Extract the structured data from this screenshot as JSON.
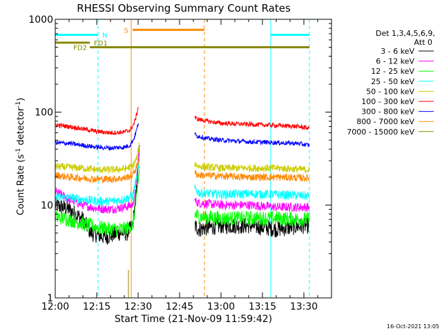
{
  "chart_data": {
    "type": "line",
    "title": "RHESSI Observing Summary Count Rates",
    "xlabel": "Start Time (21-Nov-09 11:59:42)",
    "ylabel_parts": [
      "Count Rate (s",
      "-1",
      " detector",
      "-1",
      ")"
    ],
    "yscale": "log",
    "xlim": [
      0,
      100
    ],
    "ylim": [
      1,
      1000
    ],
    "x_unit": "minutes after 12:00",
    "x_ticks": [
      {
        "x": 0,
        "label": "12:00"
      },
      {
        "x": 15,
        "label": "12:15"
      },
      {
        "x": 30,
        "label": "12:30"
      },
      {
        "x": 45,
        "label": "12:45"
      },
      {
        "x": 60,
        "label": "13:00"
      },
      {
        "x": 75,
        "label": "13:15"
      },
      {
        "x": 90,
        "label": "13:30"
      }
    ],
    "y_ticks": [
      {
        "y": 1,
        "label": "1"
      },
      {
        "y": 10,
        "label": "10"
      },
      {
        "y": 100,
        "label": "100"
      },
      {
        "y": 1000,
        "label": "1000"
      }
    ],
    "legend": {
      "placement": "right",
      "header": [
        "Det 1,3,4,5,6,9,",
        "Att 0"
      ]
    },
    "series": [
      {
        "name": "3 - 6 keV",
        "color": "#000000",
        "before": [
          [
            0,
            10
          ],
          [
            5,
            9
          ],
          [
            10,
            7
          ],
          [
            13,
            5
          ],
          [
            18,
            4.5
          ],
          [
            23,
            5
          ],
          [
            26,
            5
          ],
          [
            28,
            6
          ],
          [
            29.5,
            15
          ],
          [
            30.5,
            40
          ]
        ],
        "after": [
          [
            50.5,
            6
          ],
          [
            52,
            5.5
          ],
          [
            60,
            6
          ],
          [
            70,
            6
          ],
          [
            80,
            5.5
          ],
          [
            90,
            6
          ],
          [
            92,
            6
          ]
        ],
        "noise": 0.09
      },
      {
        "name": "6 - 12 keV",
        "color": "#ff00ff",
        "before": [
          [
            0,
            14
          ],
          [
            2,
            13
          ],
          [
            5,
            11.5
          ],
          [
            10,
            10
          ],
          [
            15,
            9.2
          ],
          [
            20,
            9
          ],
          [
            25,
            9.5
          ],
          [
            28,
            10
          ],
          [
            29.5,
            20
          ],
          [
            30.5,
            45
          ]
        ],
        "after": [
          [
            50.5,
            11
          ],
          [
            52,
            10.5
          ],
          [
            60,
            10
          ],
          [
            70,
            10
          ],
          [
            80,
            9.5
          ],
          [
            92,
            9.5
          ]
        ],
        "noise": 0.05
      },
      {
        "name": "12 - 25 keV",
        "color": "#00ff00",
        "before": [
          [
            0,
            7.5
          ],
          [
            5,
            7
          ],
          [
            10,
            6.3
          ],
          [
            15,
            5.8
          ],
          [
            20,
            5.5
          ],
          [
            25,
            5.5
          ],
          [
            28,
            6
          ],
          [
            29.5,
            12
          ],
          [
            30.5,
            25
          ]
        ],
        "after": [
          [
            50.5,
            8
          ],
          [
            52,
            7.5
          ],
          [
            60,
            7.2
          ],
          [
            70,
            7.2
          ],
          [
            80,
            7.2
          ],
          [
            92,
            7
          ]
        ],
        "noise": 0.08
      },
      {
        "name": "25 - 50 keV",
        "color": "#00ffff",
        "before": [
          [
            0,
            12
          ],
          [
            5,
            12
          ],
          [
            10,
            11.5
          ],
          [
            15,
            11
          ],
          [
            20,
            11
          ],
          [
            25,
            11.5
          ],
          [
            28,
            12.5
          ],
          [
            29.5,
            20
          ],
          [
            30.5,
            32
          ]
        ],
        "after": [
          [
            50.5,
            15
          ],
          [
            52,
            13.5
          ],
          [
            60,
            13
          ],
          [
            70,
            13.2
          ],
          [
            80,
            13
          ],
          [
            92,
            12.5
          ]
        ],
        "noise": 0.05
      },
      {
        "name": "50 - 100 keV",
        "color": "#cccc00",
        "before": [
          [
            0,
            26
          ],
          [
            5,
            25.5
          ],
          [
            10,
            25
          ],
          [
            15,
            24
          ],
          [
            20,
            24
          ],
          [
            25,
            24.5
          ],
          [
            28,
            26
          ],
          [
            29.5,
            32
          ],
          [
            30.5,
            45
          ]
        ],
        "after": [
          [
            50.5,
            28
          ],
          [
            52,
            26
          ],
          [
            60,
            25
          ],
          [
            70,
            25
          ],
          [
            80,
            25
          ],
          [
            92,
            24
          ]
        ],
        "noise": 0.04
      },
      {
        "name": "100 - 300 keV",
        "color": "#ff0000",
        "before": [
          [
            0,
            73
          ],
          [
            5,
            70
          ],
          [
            10,
            66
          ],
          [
            15,
            62
          ],
          [
            20,
            60
          ],
          [
            25,
            61
          ],
          [
            27,
            64
          ],
          [
            28.5,
            75
          ],
          [
            29.5,
            95
          ],
          [
            30.2,
            120
          ]
        ],
        "after": [
          [
            50.5,
            90
          ],
          [
            51,
            85
          ],
          [
            55,
            80
          ],
          [
            60,
            76
          ],
          [
            70,
            74
          ],
          [
            80,
            72
          ],
          [
            88,
            70
          ],
          [
            92,
            67
          ]
        ],
        "noise": 0.025
      },
      {
        "name": "300 - 800 keV",
        "color": "#0000ff",
        "before": [
          [
            0,
            47
          ],
          [
            5,
            46
          ],
          [
            10,
            44
          ],
          [
            15,
            42
          ],
          [
            20,
            41
          ],
          [
            25,
            42
          ],
          [
            27,
            44
          ],
          [
            28.5,
            52
          ],
          [
            29.5,
            65
          ],
          [
            30.2,
            80
          ]
        ],
        "after": [
          [
            50.5,
            58
          ],
          [
            51,
            56
          ],
          [
            55,
            52
          ],
          [
            60,
            50
          ],
          [
            70,
            48
          ],
          [
            80,
            47
          ],
          [
            88,
            46
          ],
          [
            92,
            44
          ]
        ],
        "noise": 0.025
      },
      {
        "name": "800 - 7000 keV",
        "color": "#ff8800",
        "before": [
          [
            0,
            21
          ],
          [
            5,
            20
          ],
          [
            10,
            19.5
          ],
          [
            15,
            19
          ],
          [
            20,
            19
          ],
          [
            25,
            19.5
          ],
          [
            28,
            21
          ],
          [
            29.5,
            26
          ],
          [
            30.5,
            32
          ]
        ],
        "after": [
          [
            50.5,
            22
          ],
          [
            52,
            21
          ],
          [
            60,
            20.5
          ],
          [
            70,
            20
          ],
          [
            80,
            20
          ],
          [
            92,
            19.5
          ]
        ],
        "noise": 0.04
      },
      {
        "name": "7000 - 15000 keV",
        "color": "#888800",
        "before": [
          [
            26.5,
            1
          ],
          [
            26.5,
            2
          ]
        ],
        "after": [],
        "noise": 0
      }
    ],
    "markers": [
      {
        "label": "N",
        "color": "#00ffff",
        "segments": [
          [
            0,
            15.5
          ],
          [
            78,
            92
          ]
        ],
        "level": 680
      },
      {
        "label": "FD1",
        "color": "#888800",
        "segments": [
          [
            0,
            12.5
          ]
        ],
        "level": 560
      },
      {
        "label": "FD2",
        "color": "#888800",
        "segments": [
          [
            12.5,
            92
          ]
        ],
        "level": 500
      },
      {
        "label": "S",
        "color": "#ff8800",
        "segments": [
          [
            28,
            54
          ]
        ],
        "level": 770
      }
    ],
    "vlines": [
      {
        "x": 15.5,
        "color": "#00ffff",
        "style": "dashed"
      },
      {
        "x": 78,
        "color": "#00ffff",
        "style": "solid"
      },
      {
        "x": 92,
        "color": "#00ffff",
        "style": "dashed"
      },
      {
        "x": 27.5,
        "color": "#ff8800",
        "style": "solid"
      },
      {
        "x": 54,
        "color": "#ff8800",
        "style": "dashed"
      }
    ],
    "gap": [
      31,
      50.5
    ]
  },
  "footer": {
    "timestamp": "16-Oct-2021 13:05"
  }
}
